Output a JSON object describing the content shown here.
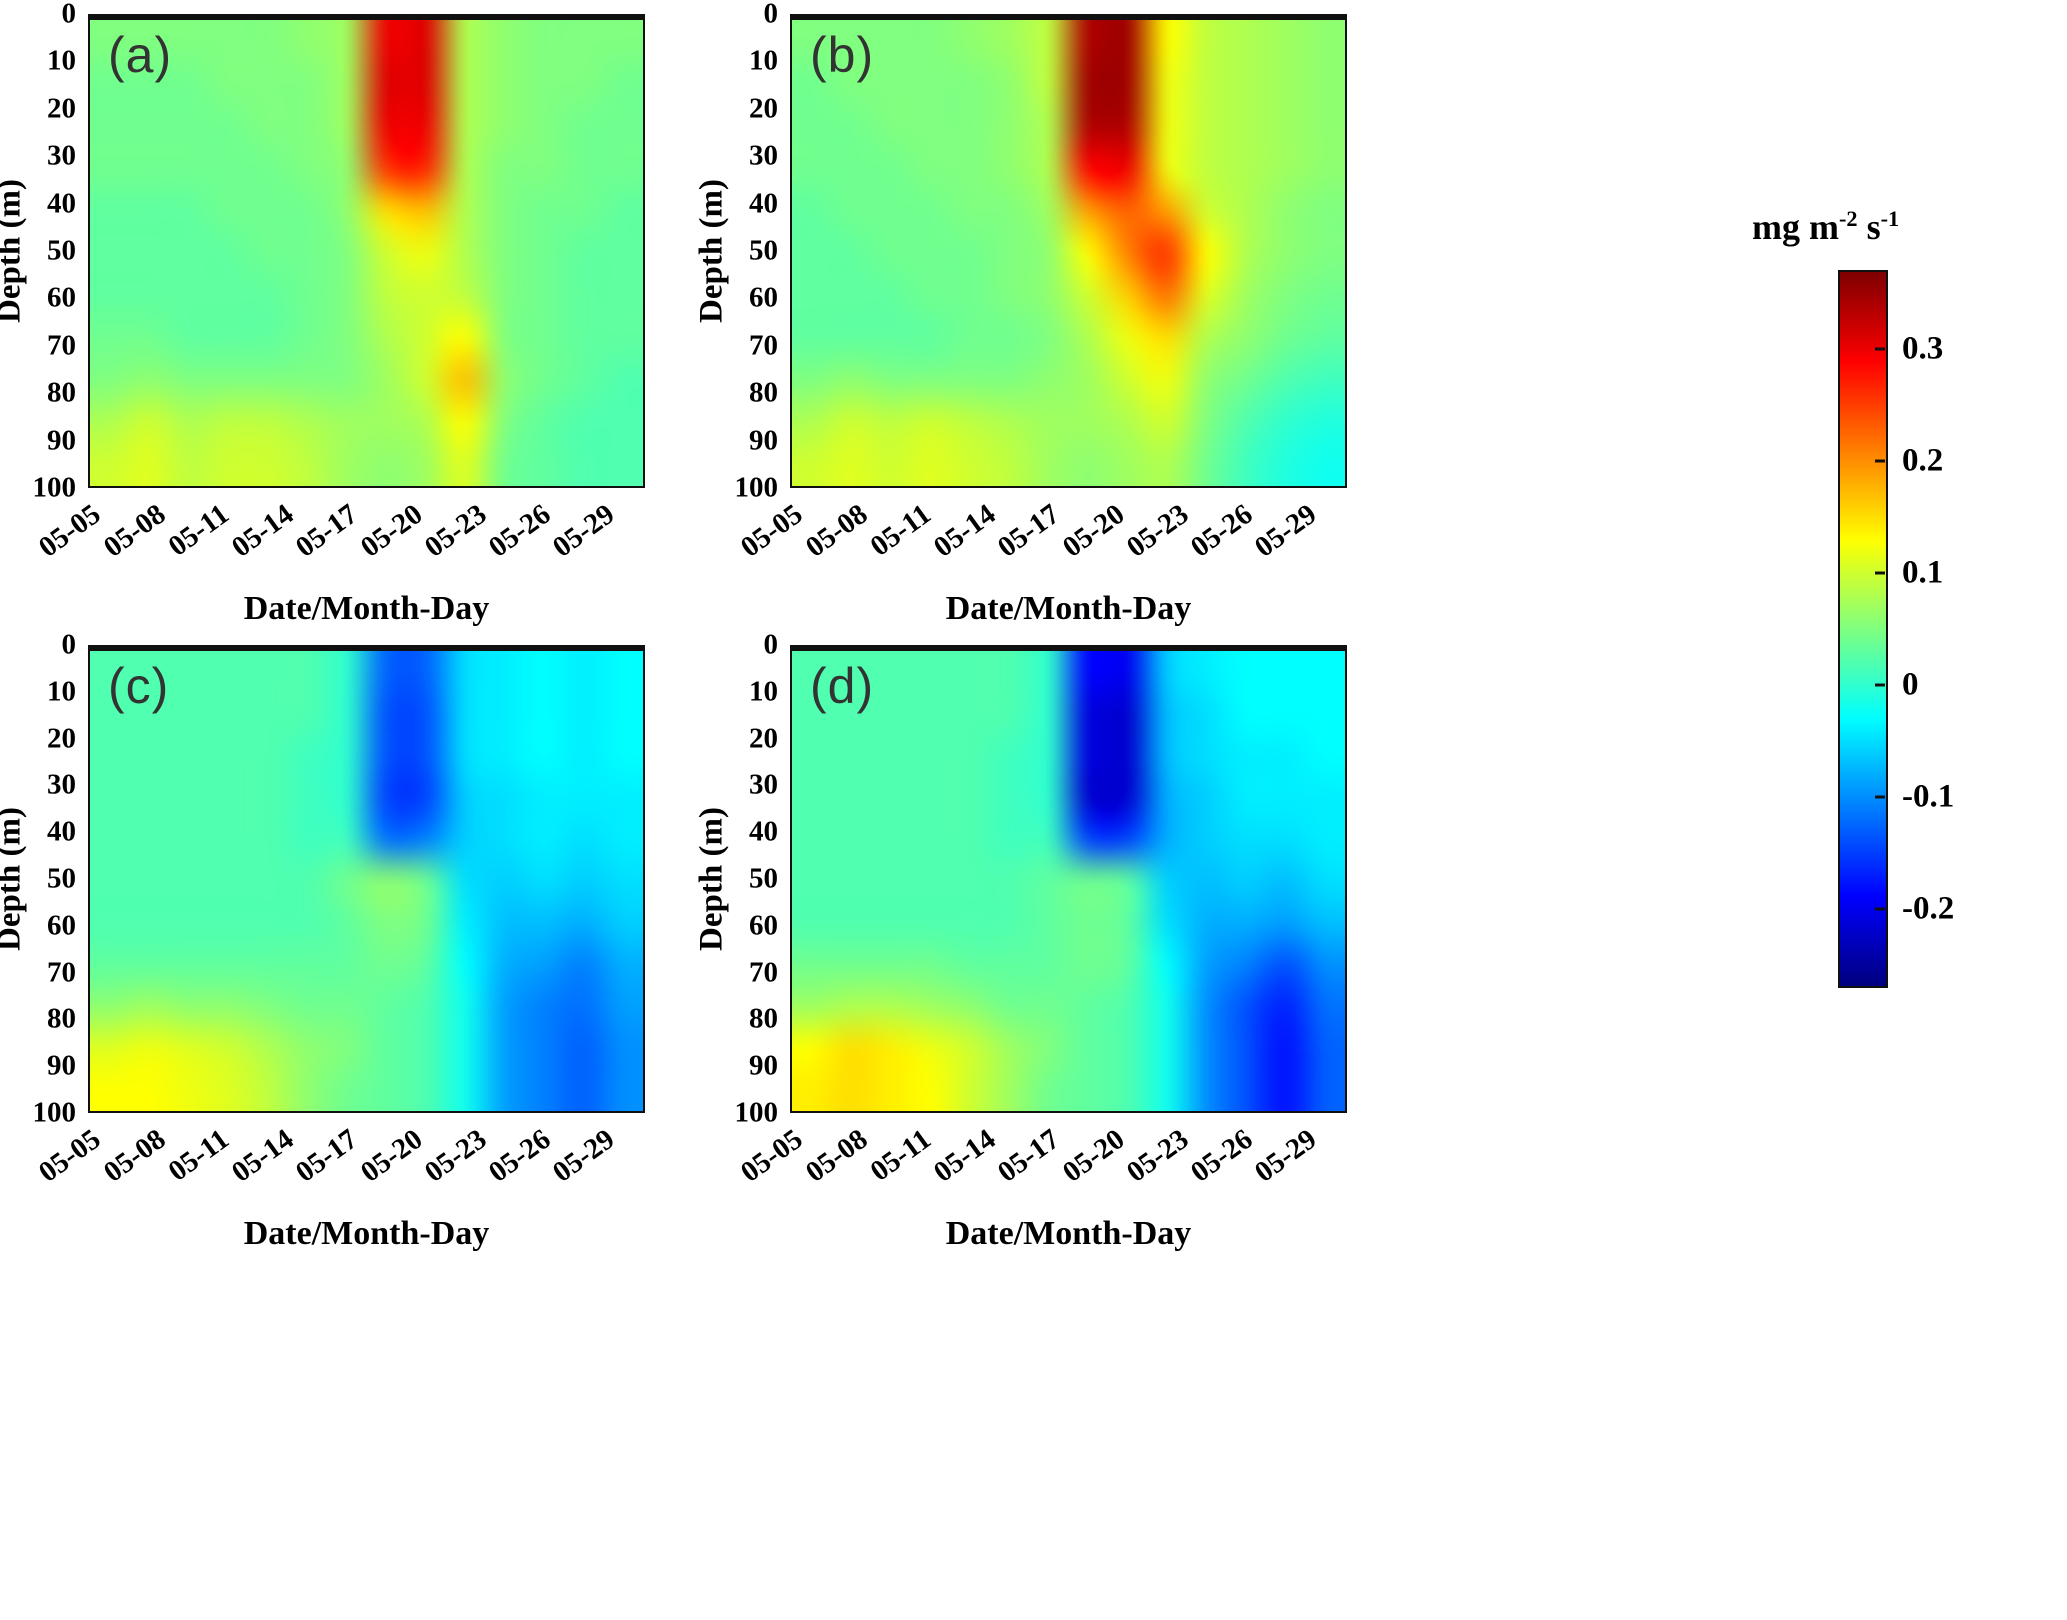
{
  "figure": {
    "background": "#ffffff",
    "colorbar": {
      "title": {
        "t1": "mg m",
        "s1": "-2",
        "t2": " s",
        "s2": "-1"
      },
      "units_text": "mg m-2 s-1",
      "ticks": [
        "0.3",
        "0.2",
        "0.1",
        "0",
        "-0.1",
        "-0.2"
      ],
      "tick_values": [
        0.3,
        0.2,
        0.1,
        0,
        -0.1,
        -0.2
      ],
      "vmin": -0.27,
      "vmax": 0.37,
      "colormap": "jet"
    }
  },
  "chart_data": [
    {
      "type": "heatmap",
      "panel_label": "(a)",
      "xlabel": "Date/Month-Day",
      "ylabel": "Depth (m)",
      "x_ticks": [
        "05-05",
        "05-08",
        "05-11",
        "05-14",
        "05-17",
        "05-20",
        "05-23",
        "05-26",
        "05-29"
      ],
      "x_tick_days": [
        5,
        8,
        11,
        14,
        17,
        20,
        23,
        26,
        29
      ],
      "y_ticks": [
        "0",
        "10",
        "20",
        "30",
        "40",
        "50",
        "60",
        "70",
        "80",
        "90",
        "100"
      ],
      "x_days": [
        5,
        7,
        9,
        11,
        13,
        15,
        17,
        19,
        21,
        23,
        25,
        27,
        29,
        31
      ],
      "depths": [
        0,
        10,
        20,
        30,
        40,
        50,
        60,
        70,
        80,
        90,
        100
      ],
      "vmin": -0.27,
      "vmax": 0.37,
      "colormap": "jet",
      "values": [
        [
          0.05,
          0.05,
          0.05,
          0.05,
          0.05,
          0.06,
          0.07,
          0.3,
          0.31,
          0.08,
          0.06,
          0.05,
          0.05,
          0.05
        ],
        [
          0.04,
          0.04,
          0.04,
          0.05,
          0.05,
          0.05,
          0.07,
          0.31,
          0.31,
          0.08,
          0.06,
          0.05,
          0.05,
          0.04
        ],
        [
          0.04,
          0.04,
          0.04,
          0.04,
          0.05,
          0.05,
          0.07,
          0.3,
          0.3,
          0.08,
          0.06,
          0.05,
          0.04,
          0.04
        ],
        [
          0.04,
          0.04,
          0.04,
          0.04,
          0.04,
          0.05,
          0.06,
          0.26,
          0.27,
          0.08,
          0.05,
          0.05,
          0.04,
          0.04
        ],
        [
          0.03,
          0.03,
          0.03,
          0.04,
          0.04,
          0.04,
          0.06,
          0.15,
          0.17,
          0.08,
          0.05,
          0.04,
          0.04,
          0.03
        ],
        [
          0.03,
          0.03,
          0.03,
          0.03,
          0.04,
          0.04,
          0.05,
          0.1,
          0.12,
          0.08,
          0.05,
          0.04,
          0.03,
          0.03
        ],
        [
          0.03,
          0.03,
          0.03,
          0.03,
          0.03,
          0.04,
          0.05,
          0.09,
          0.1,
          0.09,
          0.05,
          0.04,
          0.03,
          0.03
        ],
        [
          0.04,
          0.04,
          0.03,
          0.03,
          0.03,
          0.04,
          0.05,
          0.08,
          0.1,
          0.13,
          0.05,
          0.04,
          0.03,
          0.03
        ],
        [
          0.05,
          0.06,
          0.05,
          0.05,
          0.05,
          0.05,
          0.05,
          0.07,
          0.1,
          0.17,
          0.06,
          0.04,
          0.03,
          0.02
        ],
        [
          0.08,
          0.1,
          0.08,
          0.09,
          0.09,
          0.08,
          0.07,
          0.07,
          0.08,
          0.13,
          0.05,
          0.03,
          0.02,
          0.02
        ],
        [
          0.1,
          0.11,
          0.09,
          0.1,
          0.1,
          0.09,
          0.07,
          0.06,
          0.07,
          0.11,
          0.04,
          0.03,
          0.02,
          0.02
        ]
      ]
    },
    {
      "type": "heatmap",
      "panel_label": "(b)",
      "xlabel": "Date/Month-Day",
      "ylabel": "Depth (m)",
      "x_ticks": [
        "05-05",
        "05-08",
        "05-11",
        "05-14",
        "05-17",
        "05-20",
        "05-23",
        "05-26",
        "05-29"
      ],
      "x_tick_days": [
        5,
        8,
        11,
        14,
        17,
        20,
        23,
        26,
        29
      ],
      "y_ticks": [
        "0",
        "10",
        "20",
        "30",
        "40",
        "50",
        "60",
        "70",
        "80",
        "90",
        "100"
      ],
      "x_days": [
        5,
        7,
        9,
        11,
        13,
        15,
        17,
        19,
        21,
        23,
        25,
        27,
        29,
        31
      ],
      "depths": [
        0,
        10,
        20,
        30,
        40,
        50,
        60,
        70,
        80,
        90,
        100
      ],
      "vmin": -0.27,
      "vmax": 0.37,
      "colormap": "jet",
      "values": [
        [
          0.05,
          0.05,
          0.05,
          0.05,
          0.06,
          0.07,
          0.09,
          0.34,
          0.35,
          0.13,
          0.09,
          0.08,
          0.07,
          0.06
        ],
        [
          0.04,
          0.05,
          0.05,
          0.05,
          0.05,
          0.06,
          0.09,
          0.35,
          0.35,
          0.12,
          0.09,
          0.08,
          0.07,
          0.06
        ],
        [
          0.04,
          0.04,
          0.05,
          0.05,
          0.05,
          0.06,
          0.08,
          0.34,
          0.34,
          0.12,
          0.09,
          0.08,
          0.07,
          0.06
        ],
        [
          0.04,
          0.04,
          0.04,
          0.05,
          0.05,
          0.06,
          0.08,
          0.29,
          0.3,
          0.12,
          0.09,
          0.08,
          0.07,
          0.06
        ],
        [
          0.03,
          0.04,
          0.04,
          0.04,
          0.05,
          0.05,
          0.07,
          0.19,
          0.23,
          0.19,
          0.1,
          0.08,
          0.06,
          0.05
        ],
        [
          0.03,
          0.03,
          0.04,
          0.04,
          0.04,
          0.05,
          0.06,
          0.13,
          0.21,
          0.26,
          0.13,
          0.08,
          0.06,
          0.05
        ],
        [
          0.03,
          0.03,
          0.03,
          0.04,
          0.04,
          0.05,
          0.06,
          0.1,
          0.16,
          0.22,
          0.11,
          0.07,
          0.05,
          0.04
        ],
        [
          0.03,
          0.03,
          0.03,
          0.03,
          0.04,
          0.04,
          0.05,
          0.08,
          0.12,
          0.15,
          0.08,
          0.06,
          0.04,
          0.03
        ],
        [
          0.05,
          0.06,
          0.05,
          0.05,
          0.05,
          0.05,
          0.06,
          0.07,
          0.1,
          0.12,
          0.06,
          0.04,
          0.02,
          0.01
        ],
        [
          0.08,
          0.1,
          0.09,
          0.1,
          0.09,
          0.08,
          0.07,
          0.07,
          0.08,
          0.1,
          0.05,
          0.02,
          0.0,
          -0.01
        ],
        [
          0.1,
          0.11,
          0.1,
          0.11,
          0.1,
          0.09,
          0.07,
          0.06,
          0.07,
          0.08,
          0.04,
          0.01,
          -0.01,
          -0.02
        ]
      ]
    },
    {
      "type": "heatmap",
      "panel_label": "(c)",
      "xlabel": "Date/Month-Day",
      "ylabel": "Depth (m)",
      "x_ticks": [
        "05-05",
        "05-08",
        "05-11",
        "05-14",
        "05-17",
        "05-20",
        "05-23",
        "05-26",
        "05-29"
      ],
      "x_tick_days": [
        5,
        8,
        11,
        14,
        17,
        20,
        23,
        26,
        29
      ],
      "y_ticks": [
        "0",
        "10",
        "20",
        "30",
        "40",
        "50",
        "60",
        "70",
        "80",
        "90",
        "100"
      ],
      "x_days": [
        5,
        7,
        9,
        11,
        13,
        15,
        17,
        19,
        21,
        23,
        25,
        27,
        29,
        31
      ],
      "depths": [
        0,
        10,
        20,
        30,
        40,
        50,
        60,
        70,
        80,
        90,
        100
      ],
      "vmin": -0.27,
      "vmax": 0.37,
      "colormap": "jet",
      "values": [
        [
          0.02,
          0.02,
          0.02,
          0.02,
          0.02,
          0.02,
          0.0,
          -0.13,
          -0.13,
          -0.05,
          -0.04,
          -0.03,
          -0.04,
          -0.03
        ],
        [
          0.02,
          0.02,
          0.02,
          0.02,
          0.02,
          0.02,
          0.0,
          -0.14,
          -0.14,
          -0.05,
          -0.04,
          -0.03,
          -0.04,
          -0.03
        ],
        [
          0.02,
          0.02,
          0.02,
          0.02,
          0.02,
          0.01,
          0.0,
          -0.14,
          -0.14,
          -0.05,
          -0.04,
          -0.03,
          -0.04,
          -0.03
        ],
        [
          0.02,
          0.02,
          0.02,
          0.02,
          0.02,
          0.01,
          0.0,
          -0.15,
          -0.15,
          -0.06,
          -0.05,
          -0.04,
          -0.04,
          -0.04
        ],
        [
          0.02,
          0.02,
          0.02,
          0.02,
          0.02,
          0.01,
          0.01,
          -0.12,
          -0.11,
          -0.06,
          -0.05,
          -0.04,
          -0.05,
          -0.04
        ],
        [
          0.02,
          0.02,
          0.02,
          0.02,
          0.02,
          0.02,
          0.04,
          0.06,
          0.04,
          -0.05,
          -0.06,
          -0.05,
          -0.06,
          -0.05
        ],
        [
          0.02,
          0.02,
          0.02,
          0.02,
          0.02,
          0.02,
          0.03,
          0.05,
          0.04,
          -0.04,
          -0.07,
          -0.07,
          -0.08,
          -0.06
        ],
        [
          0.03,
          0.03,
          0.03,
          0.03,
          0.03,
          0.03,
          0.03,
          0.04,
          0.03,
          -0.03,
          -0.08,
          -0.09,
          -0.11,
          -0.08
        ],
        [
          0.06,
          0.07,
          0.06,
          0.06,
          0.05,
          0.04,
          0.04,
          0.03,
          0.02,
          -0.02,
          -0.09,
          -0.11,
          -0.12,
          -0.09
        ],
        [
          0.11,
          0.12,
          0.11,
          0.1,
          0.08,
          0.06,
          0.05,
          0.03,
          0.02,
          -0.02,
          -0.09,
          -0.11,
          -0.13,
          -0.1
        ],
        [
          0.13,
          0.13,
          0.12,
          0.11,
          0.09,
          0.06,
          0.04,
          0.03,
          0.02,
          -0.02,
          -0.09,
          -0.11,
          -0.13,
          -0.1
        ]
      ]
    },
    {
      "type": "heatmap",
      "panel_label": "(d)",
      "xlabel": "Date/Month-Day",
      "ylabel": "Depth (m)",
      "x_ticks": [
        "05-05",
        "05-08",
        "05-11",
        "05-14",
        "05-17",
        "05-20",
        "05-23",
        "05-26",
        "05-29"
      ],
      "x_tick_days": [
        5,
        8,
        11,
        14,
        17,
        20,
        23,
        26,
        29
      ],
      "y_ticks": [
        "0",
        "10",
        "20",
        "30",
        "40",
        "50",
        "60",
        "70",
        "80",
        "90",
        "100"
      ],
      "x_days": [
        5,
        7,
        9,
        11,
        13,
        15,
        17,
        19,
        21,
        23,
        25,
        27,
        29,
        31
      ],
      "depths": [
        0,
        10,
        20,
        30,
        40,
        50,
        60,
        70,
        80,
        90,
        100
      ],
      "vmin": -0.27,
      "vmax": 0.37,
      "colormap": "jet",
      "values": [
        [
          0.02,
          0.02,
          0.02,
          0.02,
          0.02,
          0.02,
          0.0,
          -0.19,
          -0.2,
          -0.06,
          -0.04,
          -0.03,
          -0.03,
          -0.03
        ],
        [
          0.02,
          0.02,
          0.02,
          0.02,
          0.02,
          0.02,
          0.0,
          -0.21,
          -0.22,
          -0.07,
          -0.05,
          -0.03,
          -0.03,
          -0.03
        ],
        [
          0.02,
          0.02,
          0.02,
          0.02,
          0.02,
          0.01,
          0.0,
          -0.21,
          -0.22,
          -0.07,
          -0.05,
          -0.04,
          -0.04,
          -0.03
        ],
        [
          0.02,
          0.02,
          0.02,
          0.02,
          0.02,
          0.01,
          0.0,
          -0.22,
          -0.22,
          -0.08,
          -0.06,
          -0.04,
          -0.04,
          -0.04
        ],
        [
          0.02,
          0.02,
          0.02,
          0.02,
          0.02,
          0.01,
          0.01,
          -0.15,
          -0.15,
          -0.08,
          -0.06,
          -0.05,
          -0.05,
          -0.04
        ],
        [
          0.02,
          0.02,
          0.02,
          0.02,
          0.02,
          0.02,
          0.03,
          0.04,
          0.03,
          -0.06,
          -0.07,
          -0.06,
          -0.07,
          -0.05
        ],
        [
          0.02,
          0.02,
          0.02,
          0.02,
          0.02,
          0.02,
          0.03,
          0.04,
          0.03,
          -0.05,
          -0.08,
          -0.08,
          -0.09,
          -0.07
        ],
        [
          0.04,
          0.04,
          0.04,
          0.04,
          0.03,
          0.03,
          0.03,
          0.04,
          0.03,
          -0.03,
          -0.09,
          -0.11,
          -0.14,
          -0.1
        ],
        [
          0.07,
          0.08,
          0.08,
          0.07,
          0.06,
          0.04,
          0.04,
          0.03,
          0.02,
          -0.02,
          -0.1,
          -0.14,
          -0.17,
          -0.12
        ],
        [
          0.13,
          0.15,
          0.14,
          0.12,
          0.1,
          0.07,
          0.05,
          0.03,
          0.02,
          -0.02,
          -0.1,
          -0.14,
          -0.18,
          -0.13
        ],
        [
          0.14,
          0.15,
          0.14,
          0.13,
          0.1,
          0.07,
          0.04,
          0.03,
          0.02,
          -0.02,
          -0.1,
          -0.14,
          -0.18,
          -0.13
        ]
      ]
    }
  ]
}
